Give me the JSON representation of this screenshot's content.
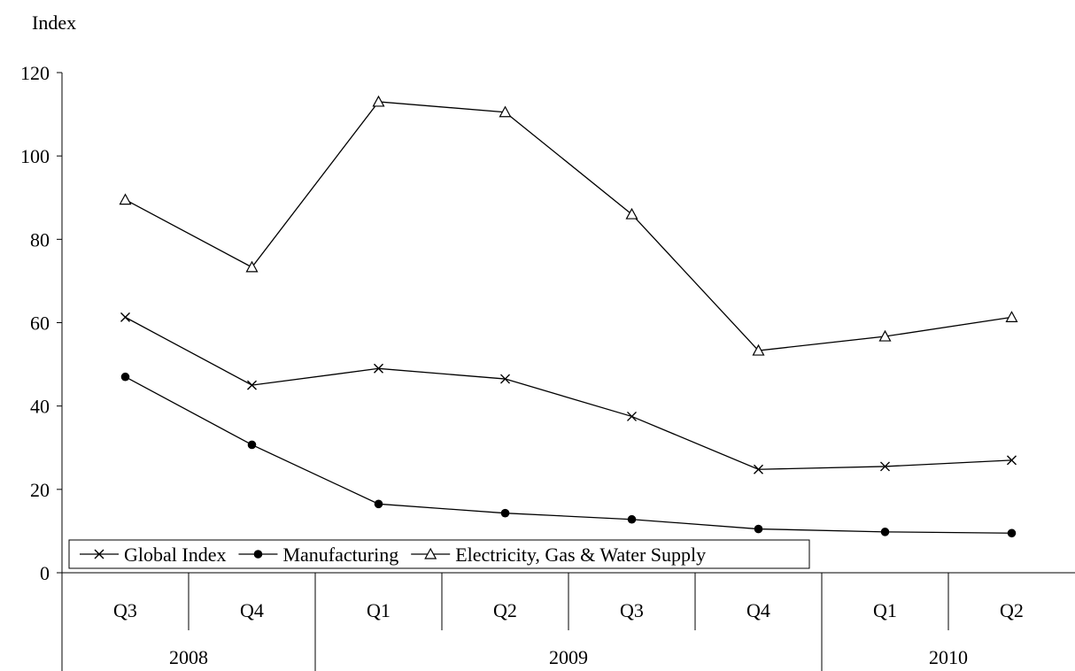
{
  "chart_data": {
    "type": "line",
    "title": "",
    "ylabel": "Index",
    "xlabel": "",
    "ylim": [
      0,
      120
    ],
    "yticks": [
      0,
      20,
      40,
      60,
      80,
      100,
      120
    ],
    "grid": false,
    "legend_position": "bottom-left",
    "categories": [
      "Q3",
      "Q4",
      "Q1",
      "Q2",
      "Q3",
      "Q4",
      "Q1",
      "Q2"
    ],
    "years": [
      {
        "label": "2008",
        "span": 2
      },
      {
        "label": "2009",
        "span": 4
      },
      {
        "label": "2010",
        "span": 2
      }
    ],
    "series": [
      {
        "name": "Global Index",
        "marker": "x",
        "values": [
          61.3,
          45.0,
          49.0,
          46.5,
          37.5,
          24.8,
          25.5,
          27.0
        ]
      },
      {
        "name": "Manufacturing",
        "marker": "dot",
        "values": [
          47.0,
          30.7,
          16.5,
          14.3,
          12.8,
          10.5,
          9.8,
          9.5
        ]
      },
      {
        "name": "Electricity, Gas & Water Supply",
        "marker": "triangle",
        "values": [
          89.5,
          73.3,
          113.0,
          110.5,
          86.0,
          53.3,
          56.7,
          61.3
        ]
      }
    ]
  }
}
